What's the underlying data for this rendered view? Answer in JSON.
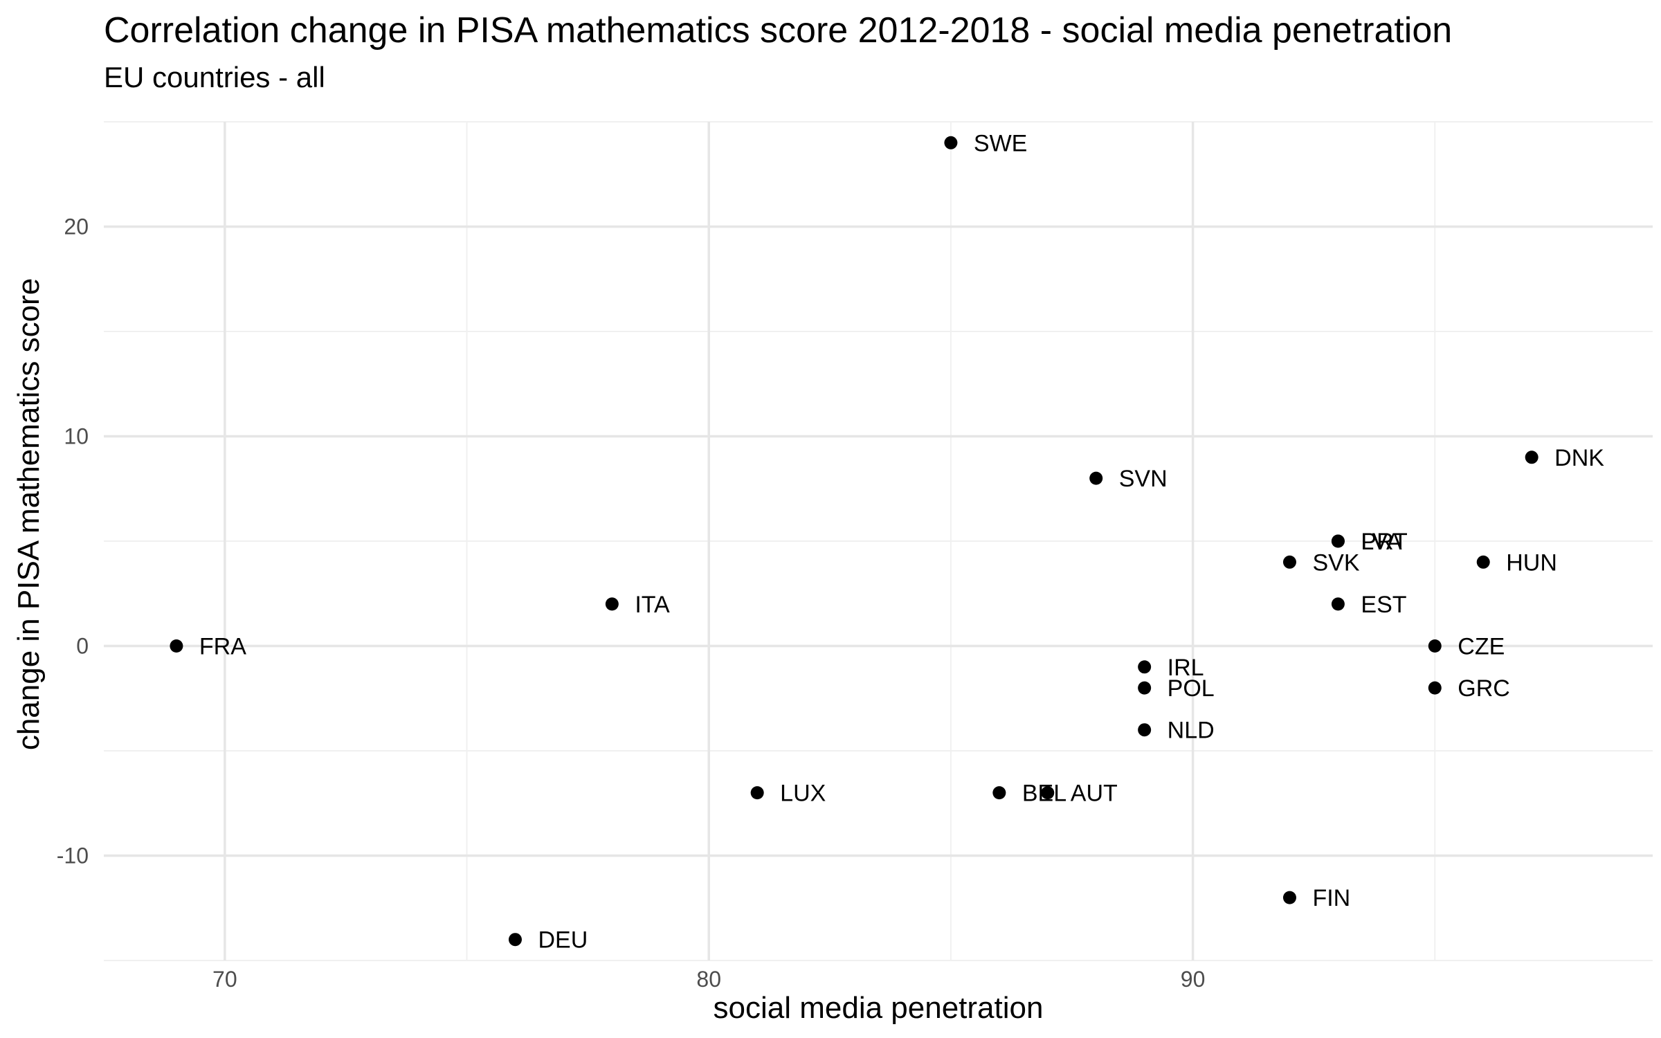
{
  "chart_data": {
    "type": "scatter",
    "title": "Correlation change in PISA mathematics score 2012-2018 - social media penetration",
    "subtitle": "EU countries - all",
    "xlabel": "social media penetration",
    "ylabel": "change in PISA mathematics score",
    "xlim": [
      67.5,
      99.5
    ],
    "ylim": [
      -15,
      25
    ],
    "x_ticks": [
      70,
      80,
      90
    ],
    "y_ticks": [
      -10,
      0,
      10,
      20
    ],
    "grid": true,
    "legend": "none",
    "point_color": "#000000",
    "points": [
      {
        "label": "SWE",
        "x": 85,
        "y": 24
      },
      {
        "label": "DNK",
        "x": 97,
        "y": 9
      },
      {
        "label": "SVN",
        "x": 88,
        "y": 8
      },
      {
        "label": "PRT",
        "x": 93,
        "y": 5
      },
      {
        "label": "LVA",
        "x": 93,
        "y": 5
      },
      {
        "label": "SVK",
        "x": 92,
        "y": 4
      },
      {
        "label": "HUN",
        "x": 96,
        "y": 4
      },
      {
        "label": "ITA",
        "x": 78,
        "y": 2
      },
      {
        "label": "EST",
        "x": 93,
        "y": 2
      },
      {
        "label": "FRA",
        "x": 69,
        "y": 0
      },
      {
        "label": "CZE",
        "x": 95,
        "y": 0
      },
      {
        "label": "IRL",
        "x": 89,
        "y": -1
      },
      {
        "label": "POL",
        "x": 89,
        "y": -2
      },
      {
        "label": "GRC",
        "x": 95,
        "y": -2
      },
      {
        "label": "NLD",
        "x": 89,
        "y": -4
      },
      {
        "label": "LUX",
        "x": 81,
        "y": -7
      },
      {
        "label": "BEL",
        "x": 86,
        "y": -7
      },
      {
        "label": "AUT",
        "x": 87,
        "y": -7
      },
      {
        "label": "FIN",
        "x": 92,
        "y": -12
      },
      {
        "label": "DEU",
        "x": 76,
        "y": -14
      }
    ]
  }
}
